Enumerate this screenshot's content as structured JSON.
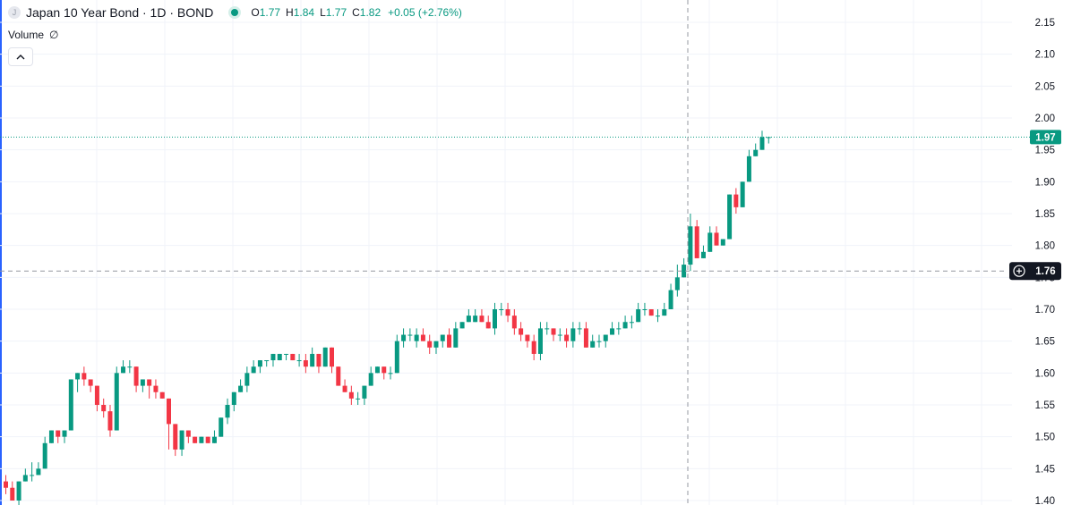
{
  "legend": {
    "symbol_icon": "J",
    "title": "Japan 10 Year Bond · 1D · BOND",
    "o_label": "O",
    "o_value": "1.77",
    "h_label": "H",
    "h_value": "1.84",
    "l_label": "L",
    "l_value": "1.77",
    "c_label": "C",
    "c_value": "1.82",
    "change": "+0.05 (+2.76%)"
  },
  "volume": {
    "label": "Volume",
    "value": "∅"
  },
  "collapse_icon": "chevron-up-icon",
  "colors": {
    "up": "#089981",
    "down": "#f23645",
    "grid": "#f0f3fa",
    "crosshair": "#9598a1",
    "price_line": "#089981",
    "border": "#2962ff"
  },
  "chart_data": {
    "type": "candlestick",
    "y_ticks": [
      "2.15",
      "2.10",
      "2.05",
      "2.00",
      "1.95",
      "1.90",
      "1.85",
      "1.80",
      "1.75",
      "1.70",
      "1.65",
      "1.60",
      "1.55",
      "1.50",
      "1.45",
      "1.40"
    ],
    "ylim": [
      1.4,
      2.15
    ],
    "grid": true,
    "last_price": "1.97",
    "crosshair_price": "1.76",
    "crosshair_icon": "plus-circle-icon",
    "candles": [
      [
        1.43,
        1.44,
        1.41,
        1.42
      ],
      [
        1.42,
        1.43,
        1.4,
        1.4
      ],
      [
        1.4,
        1.43,
        1.39,
        1.43
      ],
      [
        1.43,
        1.45,
        1.43,
        1.44
      ],
      [
        1.44,
        1.46,
        1.43,
        1.44
      ],
      [
        1.44,
        1.46,
        1.44,
        1.45
      ],
      [
        1.45,
        1.5,
        1.45,
        1.49
      ],
      [
        1.49,
        1.51,
        1.49,
        1.51
      ],
      [
        1.51,
        1.51,
        1.49,
        1.5
      ],
      [
        1.5,
        1.51,
        1.49,
        1.51
      ],
      [
        1.51,
        1.59,
        1.51,
        1.59
      ],
      [
        1.59,
        1.6,
        1.57,
        1.6
      ],
      [
        1.6,
        1.61,
        1.58,
        1.59
      ],
      [
        1.59,
        1.59,
        1.57,
        1.58
      ],
      [
        1.58,
        1.58,
        1.54,
        1.55
      ],
      [
        1.55,
        1.56,
        1.53,
        1.54
      ],
      [
        1.54,
        1.55,
        1.5,
        1.51
      ],
      [
        1.51,
        1.61,
        1.51,
        1.6
      ],
      [
        1.6,
        1.62,
        1.6,
        1.61
      ],
      [
        1.61,
        1.62,
        1.6,
        1.61
      ],
      [
        1.61,
        1.61,
        1.57,
        1.58
      ],
      [
        1.58,
        1.59,
        1.57,
        1.59
      ],
      [
        1.59,
        1.59,
        1.56,
        1.58
      ],
      [
        1.58,
        1.59,
        1.56,
        1.57
      ],
      [
        1.57,
        1.57,
        1.56,
        1.56
      ],
      [
        1.56,
        1.56,
        1.48,
        1.52
      ],
      [
        1.52,
        1.52,
        1.47,
        1.48
      ],
      [
        1.48,
        1.51,
        1.47,
        1.51
      ],
      [
        1.51,
        1.51,
        1.49,
        1.5
      ],
      [
        1.5,
        1.5,
        1.49,
        1.49
      ],
      [
        1.49,
        1.5,
        1.49,
        1.5
      ],
      [
        1.5,
        1.5,
        1.49,
        1.49
      ],
      [
        1.49,
        1.51,
        1.49,
        1.5
      ],
      [
        1.5,
        1.53,
        1.5,
        1.53
      ],
      [
        1.53,
        1.56,
        1.52,
        1.55
      ],
      [
        1.55,
        1.57,
        1.54,
        1.57
      ],
      [
        1.57,
        1.59,
        1.57,
        1.58
      ],
      [
        1.58,
        1.61,
        1.57,
        1.6
      ],
      [
        1.6,
        1.62,
        1.6,
        1.61
      ],
      [
        1.61,
        1.62,
        1.6,
        1.62
      ],
      [
        1.62,
        1.62,
        1.61,
        1.62
      ],
      [
        1.62,
        1.63,
        1.61,
        1.63
      ],
      [
        1.62,
        1.63,
        1.62,
        1.63
      ],
      [
        1.63,
        1.63,
        1.62,
        1.63
      ],
      [
        1.63,
        1.63,
        1.62,
        1.62
      ],
      [
        1.62,
        1.63,
        1.61,
        1.62
      ],
      [
        1.62,
        1.63,
        1.6,
        1.61
      ],
      [
        1.61,
        1.64,
        1.61,
        1.63
      ],
      [
        1.63,
        1.63,
        1.6,
        1.61
      ],
      [
        1.61,
        1.64,
        1.61,
        1.64
      ],
      [
        1.64,
        1.64,
        1.6,
        1.61
      ],
      [
        1.61,
        1.61,
        1.58,
        1.58
      ],
      [
        1.58,
        1.59,
        1.57,
        1.57
      ],
      [
        1.57,
        1.58,
        1.55,
        1.56
      ],
      [
        1.56,
        1.57,
        1.55,
        1.56
      ],
      [
        1.56,
        1.58,
        1.55,
        1.58
      ],
      [
        1.58,
        1.61,
        1.58,
        1.6
      ],
      [
        1.6,
        1.61,
        1.6,
        1.61
      ],
      [
        1.61,
        1.61,
        1.59,
        1.6
      ],
      [
        1.6,
        1.61,
        1.59,
        1.6
      ],
      [
        1.6,
        1.66,
        1.6,
        1.65
      ],
      [
        1.65,
        1.67,
        1.64,
        1.66
      ],
      [
        1.66,
        1.67,
        1.65,
        1.66
      ],
      [
        1.65,
        1.67,
        1.64,
        1.66
      ],
      [
        1.66,
        1.67,
        1.65,
        1.65
      ],
      [
        1.65,
        1.66,
        1.63,
        1.64
      ],
      [
        1.64,
        1.65,
        1.63,
        1.65
      ],
      [
        1.65,
        1.66,
        1.64,
        1.66
      ],
      [
        1.66,
        1.67,
        1.64,
        1.64
      ],
      [
        1.64,
        1.68,
        1.64,
        1.67
      ],
      [
        1.67,
        1.68,
        1.67,
        1.68
      ],
      [
        1.68,
        1.7,
        1.68,
        1.69
      ],
      [
        1.68,
        1.7,
        1.68,
        1.69
      ],
      [
        1.69,
        1.7,
        1.68,
        1.68
      ],
      [
        1.68,
        1.69,
        1.67,
        1.67
      ],
      [
        1.67,
        1.71,
        1.66,
        1.7
      ],
      [
        1.7,
        1.71,
        1.69,
        1.7
      ],
      [
        1.7,
        1.71,
        1.68,
        1.69
      ],
      [
        1.69,
        1.7,
        1.66,
        1.67
      ],
      [
        1.67,
        1.68,
        1.65,
        1.66
      ],
      [
        1.66,
        1.66,
        1.64,
        1.65
      ],
      [
        1.65,
        1.66,
        1.62,
        1.63
      ],
      [
        1.63,
        1.68,
        1.62,
        1.67
      ],
      [
        1.67,
        1.68,
        1.66,
        1.67
      ],
      [
        1.67,
        1.67,
        1.65,
        1.66
      ],
      [
        1.66,
        1.67,
        1.65,
        1.66
      ],
      [
        1.66,
        1.67,
        1.64,
        1.65
      ],
      [
        1.65,
        1.68,
        1.64,
        1.67
      ],
      [
        1.67,
        1.68,
        1.66,
        1.67
      ],
      [
        1.67,
        1.68,
        1.64,
        1.64
      ],
      [
        1.64,
        1.66,
        1.64,
        1.65
      ],
      [
        1.65,
        1.66,
        1.64,
        1.65
      ],
      [
        1.65,
        1.66,
        1.64,
        1.66
      ],
      [
        1.66,
        1.68,
        1.66,
        1.67
      ],
      [
        1.67,
        1.68,
        1.66,
        1.67
      ],
      [
        1.67,
        1.69,
        1.67,
        1.68
      ],
      [
        1.68,
        1.69,
        1.67,
        1.68
      ],
      [
        1.68,
        1.71,
        1.68,
        1.7
      ],
      [
        1.7,
        1.71,
        1.69,
        1.7
      ],
      [
        1.7,
        1.7,
        1.69,
        1.69
      ],
      [
        1.69,
        1.7,
        1.68,
        1.69
      ],
      [
        1.69,
        1.71,
        1.69,
        1.7
      ],
      [
        1.7,
        1.74,
        1.7,
        1.73
      ],
      [
        1.73,
        1.77,
        1.72,
        1.75
      ],
      [
        1.75,
        1.78,
        1.75,
        1.77
      ],
      [
        1.77,
        1.85,
        1.76,
        1.83
      ],
      [
        1.83,
        1.84,
        1.78,
        1.78
      ],
      [
        1.78,
        1.8,
        1.78,
        1.79
      ],
      [
        1.79,
        1.83,
        1.79,
        1.82
      ],
      [
        1.82,
        1.83,
        1.8,
        1.8
      ],
      [
        1.8,
        1.81,
        1.8,
        1.81
      ],
      [
        1.81,
        1.88,
        1.81,
        1.88
      ],
      [
        1.88,
        1.89,
        1.85,
        1.86
      ],
      [
        1.86,
        1.9,
        1.86,
        1.9
      ],
      [
        1.9,
        1.95,
        1.9,
        1.94
      ],
      [
        1.94,
        1.96,
        1.94,
        1.95
      ],
      [
        1.95,
        1.98,
        1.95,
        1.97
      ],
      [
        1.97,
        1.97,
        1.96,
        1.97
      ]
    ]
  }
}
